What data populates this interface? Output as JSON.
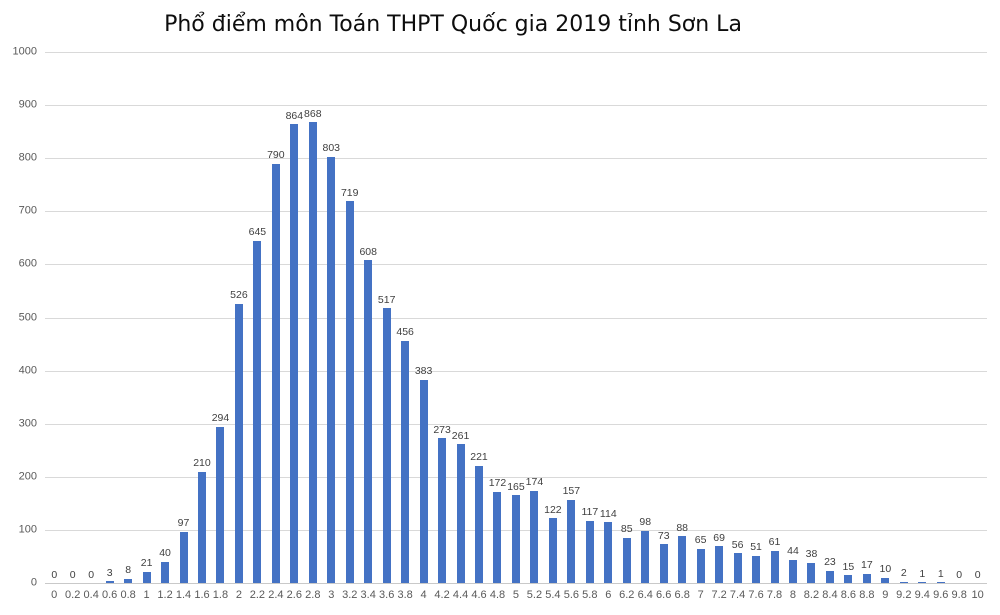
{
  "chart_data": {
    "type": "bar",
    "title": "Phổ điểm môn Toán THPT Quốc gia 2019 tỉnh Sơn La",
    "xlabel": "",
    "ylabel": "",
    "categories": [
      "0",
      "0.2",
      "0.4",
      "0.6",
      "0.8",
      "1",
      "1.2",
      "1.4",
      "1.6",
      "1.8",
      "2",
      "2.2",
      "2.4",
      "2.6",
      "2.8",
      "3",
      "3.2",
      "3.4",
      "3.6",
      "3.8",
      "4",
      "4.2",
      "4.4",
      "4.6",
      "4.8",
      "5",
      "5.2",
      "5.4",
      "5.6",
      "5.8",
      "6",
      "6.2",
      "6.4",
      "6.6",
      "6.8",
      "7",
      "7.2",
      "7.4",
      "7.6",
      "7.8",
      "8",
      "8.2",
      "8.4",
      "8.6",
      "8.8",
      "9",
      "9.2",
      "9.4",
      "9.6",
      "9.8",
      "10"
    ],
    "values": [
      0,
      0,
      0,
      3,
      8,
      21,
      40,
      97,
      210,
      294,
      526,
      645,
      790,
      864,
      868,
      803,
      719,
      608,
      517,
      456,
      383,
      273,
      261,
      221,
      172,
      165,
      174,
      122,
      157,
      117,
      114,
      85,
      98,
      73,
      88,
      65,
      69,
      56,
      51,
      61,
      44,
      38,
      23,
      15,
      17,
      10,
      2,
      1,
      1,
      0,
      0
    ],
    "data_labels_shown": true,
    "ylim": [
      0,
      1000
    ],
    "yticks": [
      0,
      100,
      200,
      300,
      400,
      500,
      600,
      700,
      800,
      900,
      1000
    ],
    "grid": true,
    "legend": false,
    "colors": {
      "bar": "#4472C4",
      "gridline": "#D9D9D9",
      "axis_line": "#C9C9C9",
      "tick_text": "#595959",
      "data_label": "#404040",
      "title_text": "#0D0D0D",
      "background": "#FFFFFF"
    }
  }
}
